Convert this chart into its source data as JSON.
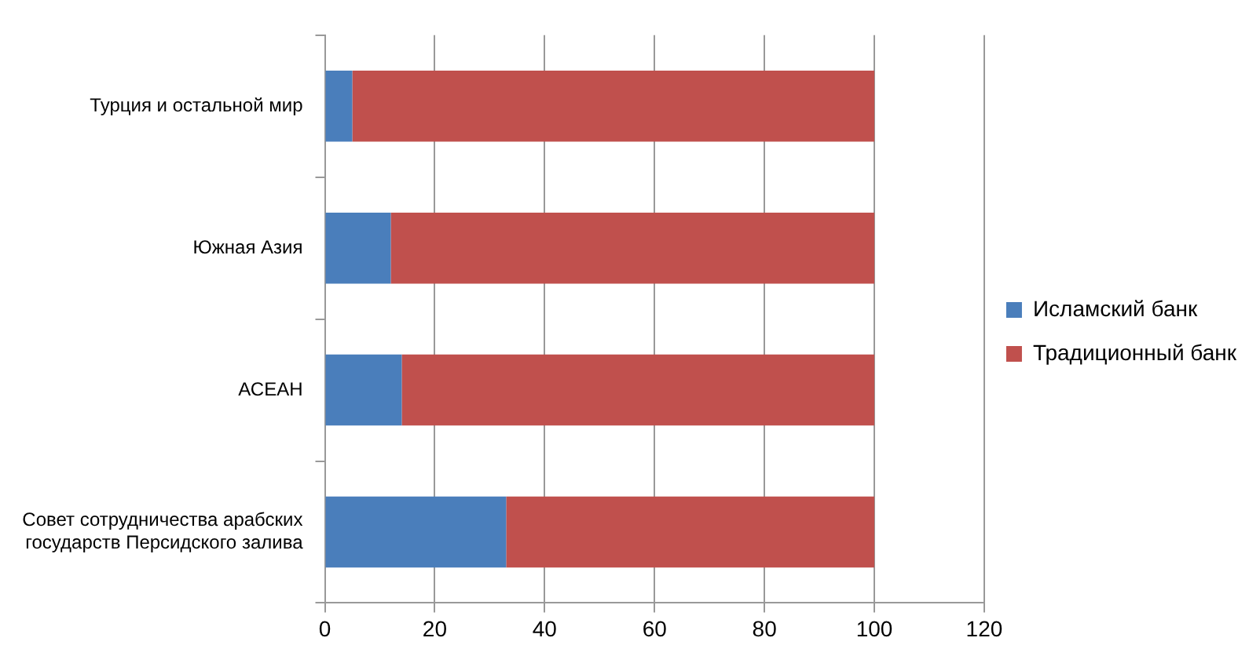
{
  "chart_data": {
    "type": "bar",
    "orientation": "horizontal",
    "stacked": true,
    "categories": [
      "Турция и остальной мир",
      "Южная Азия",
      "АСЕАН",
      "Совет сотрудничества арабских государств Персидского залива"
    ],
    "series": [
      {
        "name": "Исламский банк",
        "color": "#4a7ebb",
        "values": [
          5,
          12,
          14,
          33
        ]
      },
      {
        "name": "Традиционный банк",
        "color": "#c0504d",
        "values": [
          95,
          88,
          86,
          67
        ]
      }
    ],
    "xlim": [
      0,
      120
    ],
    "xticks": [
      0,
      20,
      40,
      60,
      80,
      100,
      120
    ],
    "grid": "x",
    "legend": "right"
  }
}
